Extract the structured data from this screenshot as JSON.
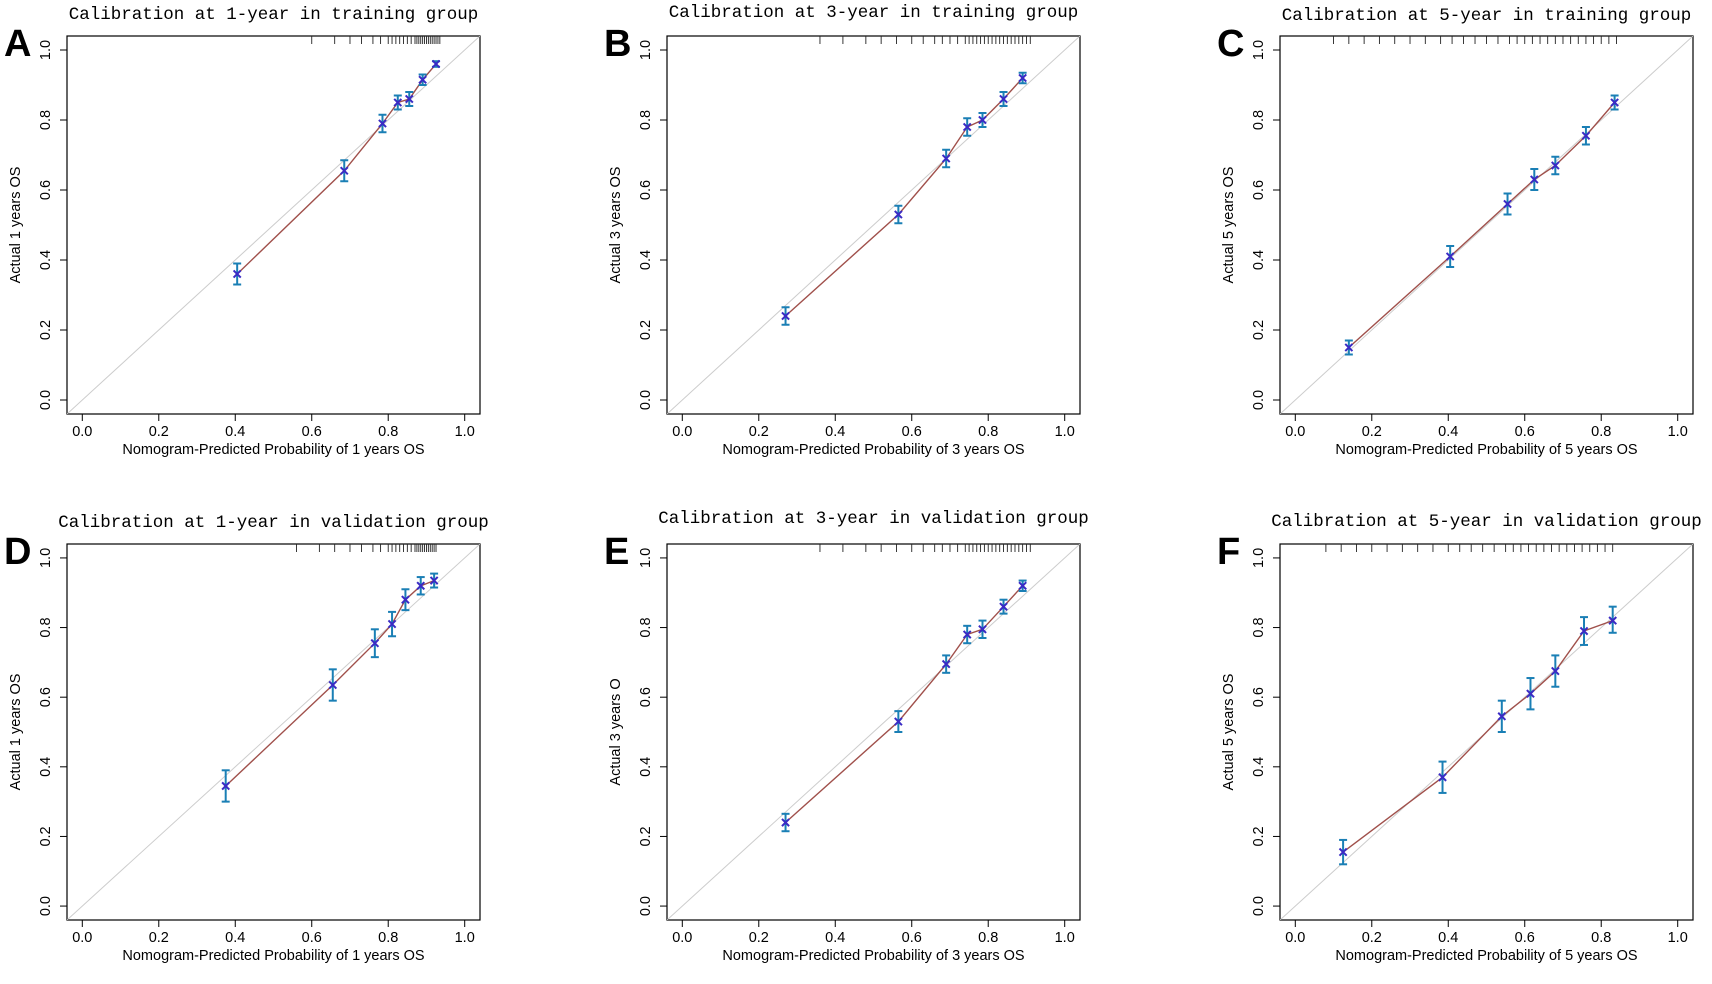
{
  "chart_data": [
    {
      "panel": "A",
      "type": "scatter",
      "title": "Calibration at 1-year in training group",
      "xlabel": "Nomogram-Predicted Probability of 1 years OS",
      "ylabel": "Actual 1 years OS",
      "xlim": [
        0,
        1
      ],
      "ylim": [
        0,
        1
      ],
      "ticks": [
        "0.0",
        "0.2",
        "0.4",
        "0.6",
        "0.8",
        "1.0"
      ],
      "colors": {
        "ideal": "#cccccc",
        "line": "#a0504b",
        "errorbar": "#1a7fb5",
        "point": "#3a2bc4"
      },
      "x": [
        0.405,
        0.685,
        0.785,
        0.825,
        0.855,
        0.89,
        0.925
      ],
      "y": [
        0.36,
        0.655,
        0.79,
        0.85,
        0.86,
        0.915,
        0.96
      ],
      "ylow": [
        0.33,
        0.625,
        0.765,
        0.83,
        0.84,
        0.9,
        0.952
      ],
      "yhigh": [
        0.39,
        0.685,
        0.815,
        0.87,
        0.88,
        0.93,
        0.968
      ],
      "rug": [
        0.6,
        0.66,
        0.7,
        0.73,
        0.76,
        0.78,
        0.8,
        0.81,
        0.82,
        0.83,
        0.84,
        0.85,
        0.86,
        0.87,
        0.875,
        0.88,
        0.885,
        0.89,
        0.895,
        0.9,
        0.905,
        0.91,
        0.915,
        0.92,
        0.925,
        0.93,
        0.935
      ]
    },
    {
      "panel": "B",
      "type": "scatter",
      "title": "Calibration at 3-year in training group",
      "xlabel": "Nomogram-Predicted Probability of 3 years OS",
      "ylabel": "Actual 3 years OS",
      "xlim": [
        0,
        1
      ],
      "ylim": [
        0,
        1
      ],
      "ticks": [
        "0.0",
        "0.2",
        "0.4",
        "0.6",
        "0.8",
        "1.0"
      ],
      "colors": {
        "ideal": "#cccccc",
        "line": "#a0504b",
        "errorbar": "#1a7fb5",
        "point": "#3a2bc4"
      },
      "x": [
        0.27,
        0.565,
        0.69,
        0.745,
        0.785,
        0.84,
        0.89
      ],
      "y": [
        0.24,
        0.53,
        0.69,
        0.78,
        0.8,
        0.86,
        0.92
      ],
      "ylow": [
        0.215,
        0.505,
        0.665,
        0.755,
        0.78,
        0.84,
        0.905
      ],
      "yhigh": [
        0.265,
        0.555,
        0.715,
        0.805,
        0.82,
        0.88,
        0.935
      ],
      "rug": [
        0.36,
        0.42,
        0.48,
        0.52,
        0.56,
        0.6,
        0.63,
        0.66,
        0.68,
        0.7,
        0.72,
        0.74,
        0.75,
        0.76,
        0.77,
        0.78,
        0.79,
        0.8,
        0.81,
        0.82,
        0.83,
        0.84,
        0.85,
        0.86,
        0.87,
        0.88,
        0.89,
        0.9,
        0.91
      ]
    },
    {
      "panel": "C",
      "type": "scatter",
      "title": "Calibration at 5-year in training group",
      "xlabel": "Nomogram-Predicted Probability of 5 years OS",
      "ylabel": "Actual 5 years OS",
      "xlim": [
        0,
        1
      ],
      "ylim": [
        0,
        1
      ],
      "ticks": [
        "0.0",
        "0.2",
        "0.4",
        "0.6",
        "0.8",
        "1.0"
      ],
      "colors": {
        "ideal": "#cccccc",
        "line": "#a0504b",
        "errorbar": "#1a7fb5",
        "point": "#3a2bc4"
      },
      "x": [
        0.14,
        0.405,
        0.555,
        0.625,
        0.68,
        0.76,
        0.835
      ],
      "y": [
        0.15,
        0.41,
        0.56,
        0.63,
        0.67,
        0.755,
        0.85
      ],
      "ylow": [
        0.13,
        0.38,
        0.53,
        0.6,
        0.645,
        0.73,
        0.83
      ],
      "yhigh": [
        0.17,
        0.44,
        0.59,
        0.66,
        0.695,
        0.78,
        0.87
      ],
      "rug": [
        0.1,
        0.14,
        0.18,
        0.22,
        0.26,
        0.3,
        0.34,
        0.38,
        0.41,
        0.44,
        0.47,
        0.5,
        0.53,
        0.56,
        0.58,
        0.6,
        0.62,
        0.64,
        0.66,
        0.68,
        0.7,
        0.72,
        0.74,
        0.76,
        0.78,
        0.8,
        0.82,
        0.84
      ]
    },
    {
      "panel": "D",
      "type": "scatter",
      "title": "Calibration at 1-year in validation group",
      "xlabel": "Nomogram-Predicted Probability of 1 years OS",
      "ylabel": "Actual 1 years OS",
      "xlim": [
        0,
        1
      ],
      "ylim": [
        0,
        1
      ],
      "ticks": [
        "0.0",
        "0.2",
        "0.4",
        "0.6",
        "0.8",
        "1.0"
      ],
      "colors": {
        "ideal": "#cccccc",
        "line": "#a0504b",
        "errorbar": "#1a7fb5",
        "point": "#3a2bc4"
      },
      "x": [
        0.375,
        0.655,
        0.765,
        0.81,
        0.845,
        0.885,
        0.92
      ],
      "y": [
        0.345,
        0.635,
        0.755,
        0.81,
        0.88,
        0.92,
        0.935
      ],
      "ylow": [
        0.3,
        0.59,
        0.715,
        0.775,
        0.85,
        0.895,
        0.915
      ],
      "yhigh": [
        0.39,
        0.68,
        0.795,
        0.845,
        0.91,
        0.945,
        0.955
      ],
      "rug": [
        0.56,
        0.62,
        0.66,
        0.7,
        0.73,
        0.76,
        0.78,
        0.8,
        0.81,
        0.82,
        0.83,
        0.84,
        0.85,
        0.86,
        0.87,
        0.875,
        0.88,
        0.885,
        0.89,
        0.895,
        0.9,
        0.905,
        0.91,
        0.915,
        0.92,
        0.925
      ]
    },
    {
      "panel": "E",
      "type": "scatter",
      "title": "Calibration at 3-year in validation group",
      "xlabel": "Nomogram-Predicted Probability of 3 years OS",
      "ylabel": "Actual 3 years O",
      "xlim": [
        0,
        1
      ],
      "ylim": [
        0,
        1
      ],
      "ticks": [
        "0.0",
        "0.2",
        "0.4",
        "0.6",
        "0.8",
        "1.0"
      ],
      "colors": {
        "ideal": "#cccccc",
        "line": "#a0504b",
        "errorbar": "#1a7fb5",
        "point": "#3a2bc4"
      },
      "x": [
        0.27,
        0.565,
        0.69,
        0.745,
        0.785,
        0.84,
        0.89
      ],
      "y": [
        0.24,
        0.53,
        0.695,
        0.78,
        0.795,
        0.86,
        0.92
      ],
      "ylow": [
        0.215,
        0.5,
        0.67,
        0.755,
        0.77,
        0.84,
        0.905
      ],
      "yhigh": [
        0.265,
        0.56,
        0.72,
        0.805,
        0.82,
        0.88,
        0.935
      ],
      "rug": [
        0.36,
        0.42,
        0.48,
        0.52,
        0.56,
        0.6,
        0.63,
        0.66,
        0.68,
        0.7,
        0.72,
        0.74,
        0.75,
        0.76,
        0.77,
        0.78,
        0.79,
        0.8,
        0.81,
        0.82,
        0.83,
        0.84,
        0.85,
        0.86,
        0.87,
        0.88,
        0.89,
        0.9,
        0.91
      ]
    },
    {
      "panel": "F",
      "type": "scatter",
      "title": "Calibration at 5-year in validation group",
      "xlabel": "Nomogram-Predicted Probability of 5 years OS",
      "ylabel": "Actual 5 years OS",
      "xlim": [
        0,
        1
      ],
      "ylim": [
        0,
        1
      ],
      "ticks": [
        "0.0",
        "0.2",
        "0.4",
        "0.6",
        "0.8",
        "1.0"
      ],
      "colors": {
        "ideal": "#cccccc",
        "line": "#a0504b",
        "errorbar": "#1a7fb5",
        "point": "#3a2bc4"
      },
      "x": [
        0.125,
        0.385,
        0.54,
        0.615,
        0.68,
        0.755,
        0.83
      ],
      "y": [
        0.155,
        0.37,
        0.545,
        0.61,
        0.675,
        0.79,
        0.82
      ],
      "ylow": [
        0.12,
        0.325,
        0.5,
        0.565,
        0.63,
        0.75,
        0.785
      ],
      "yhigh": [
        0.19,
        0.415,
        0.59,
        0.655,
        0.72,
        0.83,
        0.86
      ],
      "rug": [
        0.08,
        0.12,
        0.16,
        0.2,
        0.24,
        0.28,
        0.32,
        0.36,
        0.4,
        0.43,
        0.46,
        0.49,
        0.52,
        0.55,
        0.57,
        0.59,
        0.61,
        0.63,
        0.65,
        0.67,
        0.69,
        0.71,
        0.73,
        0.75,
        0.77,
        0.79,
        0.81,
        0.83
      ]
    }
  ]
}
